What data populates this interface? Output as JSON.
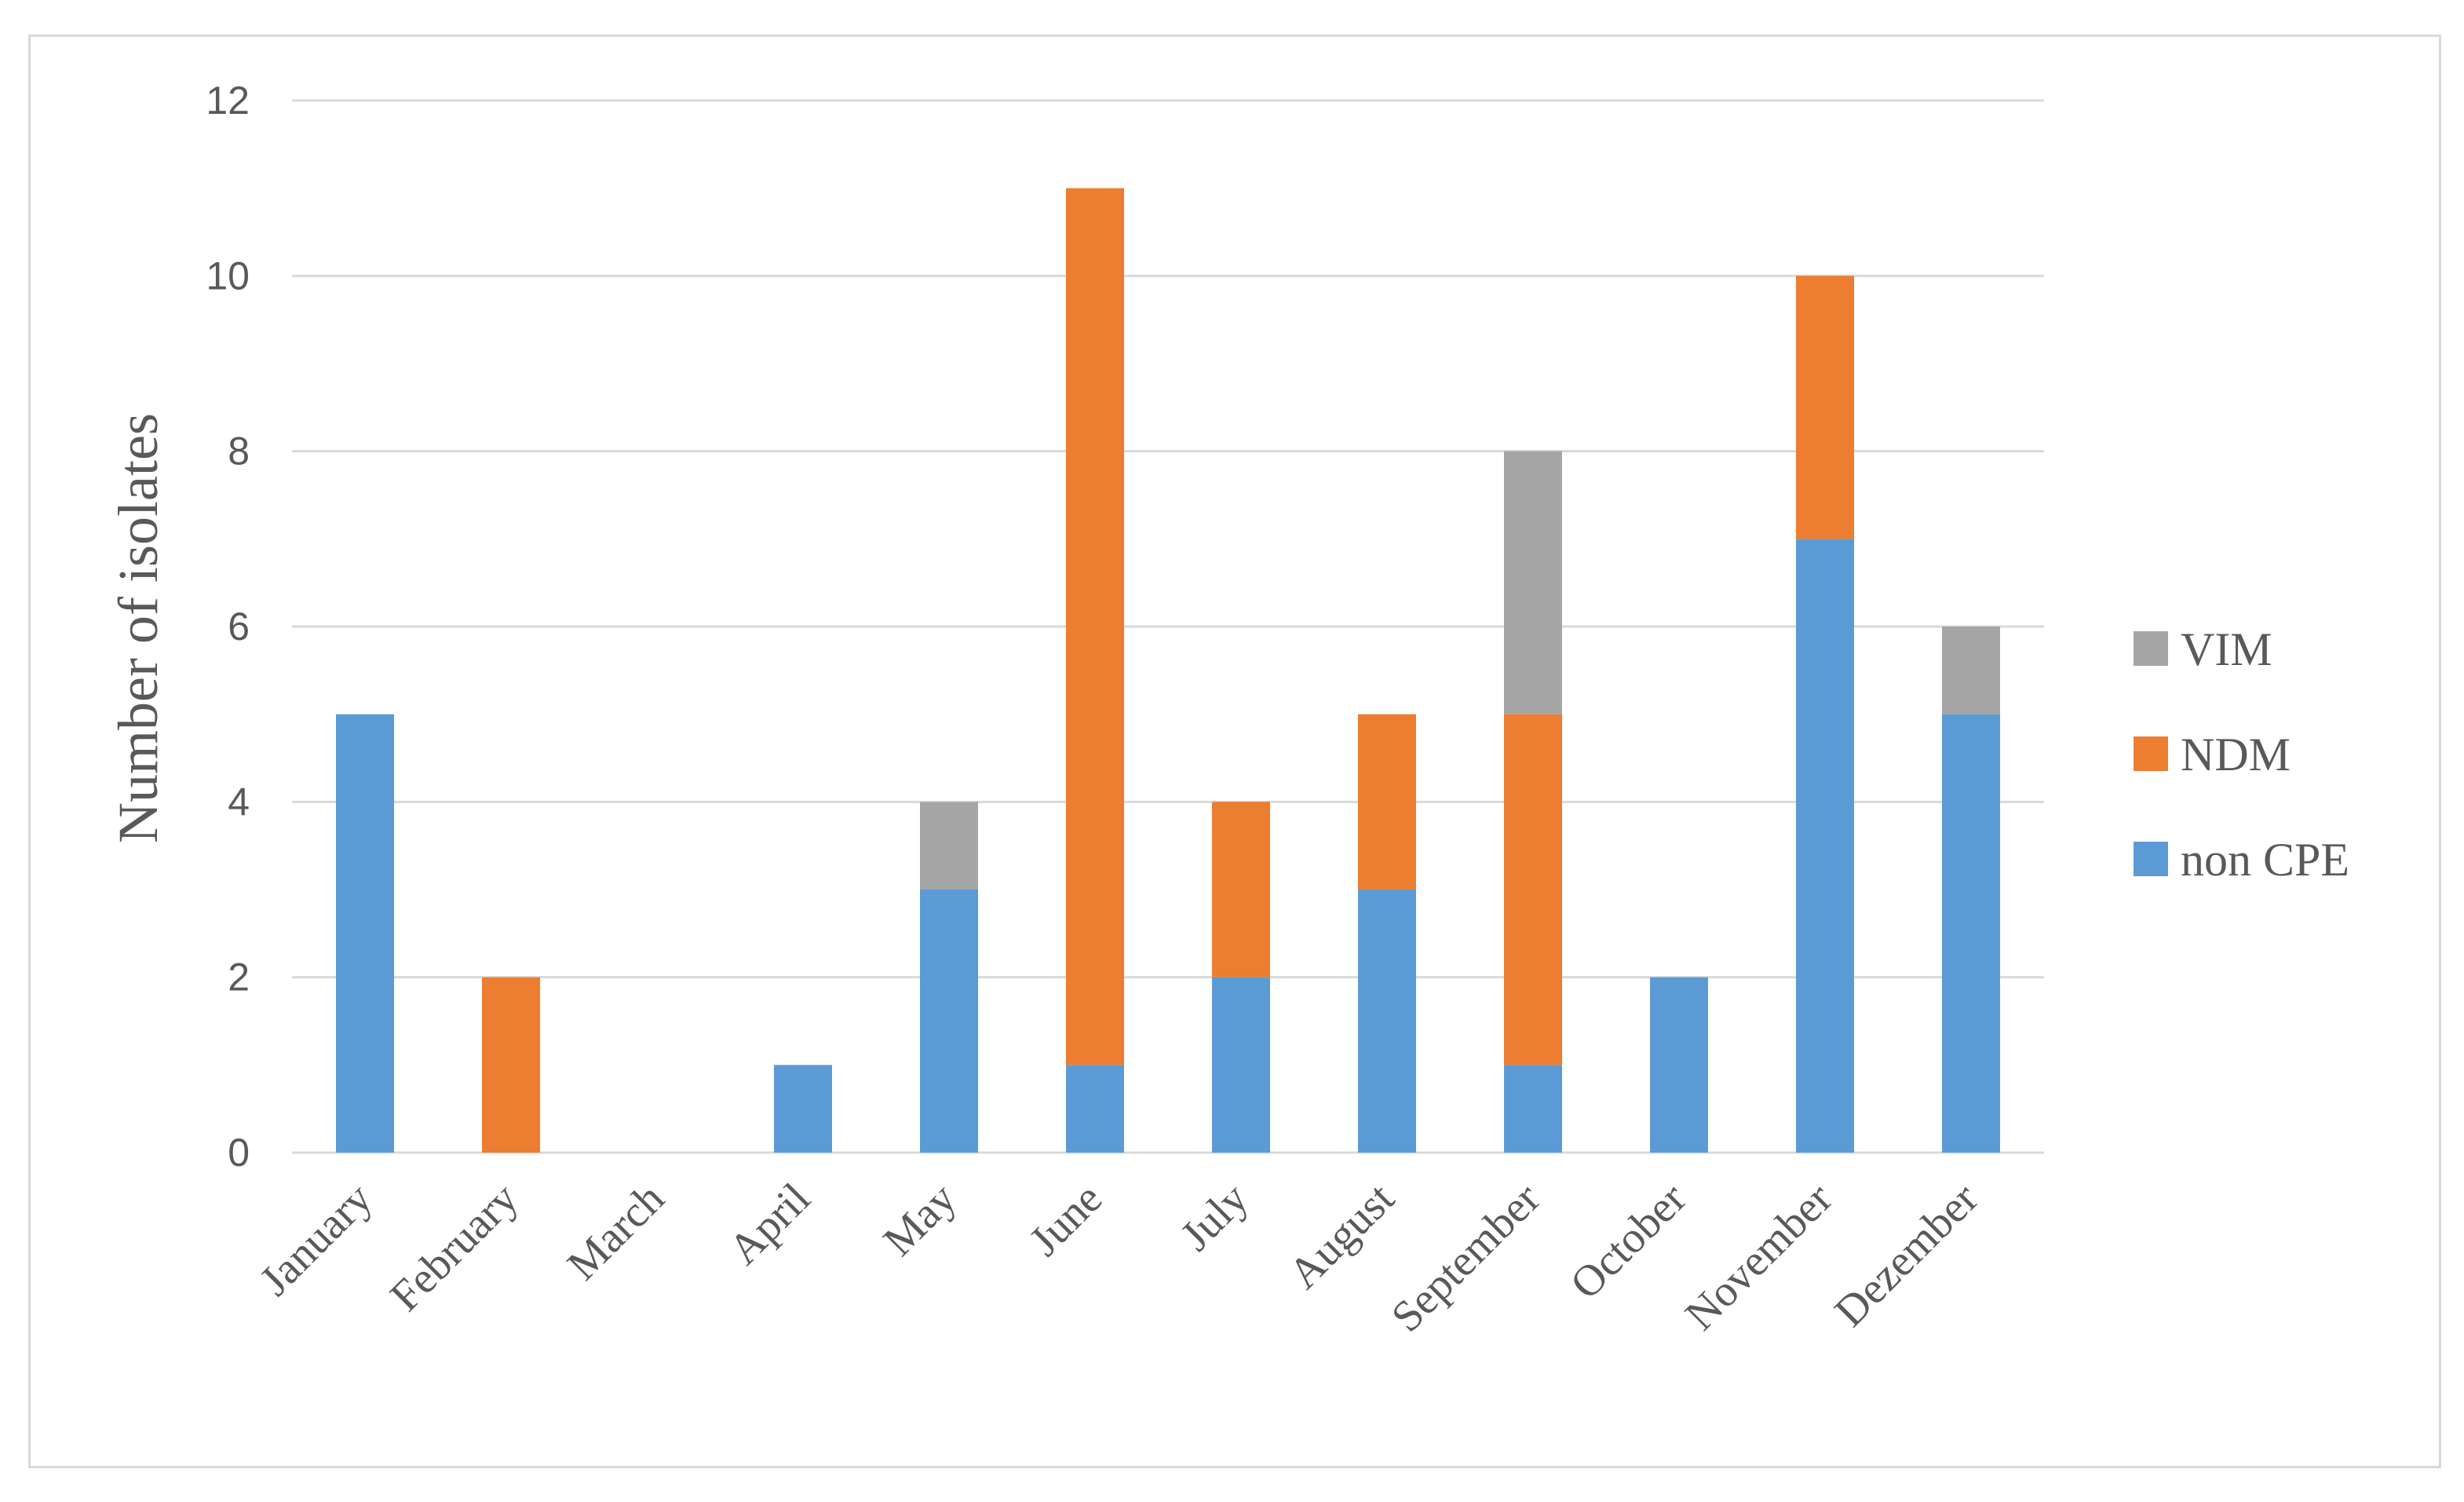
{
  "chart_data": {
    "type": "bar",
    "stacked": true,
    "title": "",
    "xlabel": "",
    "ylabel": "Number of isolates",
    "ylim": [
      0,
      12
    ],
    "yticks": [
      0,
      2,
      4,
      6,
      8,
      10,
      12
    ],
    "grid": true,
    "legend_position": "right",
    "categories": [
      "January",
      "February",
      "March",
      "April",
      "May",
      "June",
      "July",
      "August",
      "September",
      "October",
      "November",
      "Dezember"
    ],
    "series": [
      {
        "name": "non CPE",
        "color": "#5b9bd5",
        "values": [
          5,
          0,
          0,
          1,
          3,
          1,
          2,
          3,
          1,
          2,
          7,
          5
        ]
      },
      {
        "name": "NDM",
        "color": "#ed7d31",
        "values": [
          0,
          2,
          0,
          0,
          0,
          10,
          2,
          2,
          4,
          0,
          3,
          0
        ]
      },
      {
        "name": "VIM",
        "color": "#a5a5a5",
        "values": [
          0,
          0,
          0,
          0,
          1,
          0,
          0,
          0,
          3,
          0,
          0,
          1
        ]
      }
    ],
    "legend_order": [
      "VIM",
      "NDM",
      "non CPE"
    ]
  }
}
